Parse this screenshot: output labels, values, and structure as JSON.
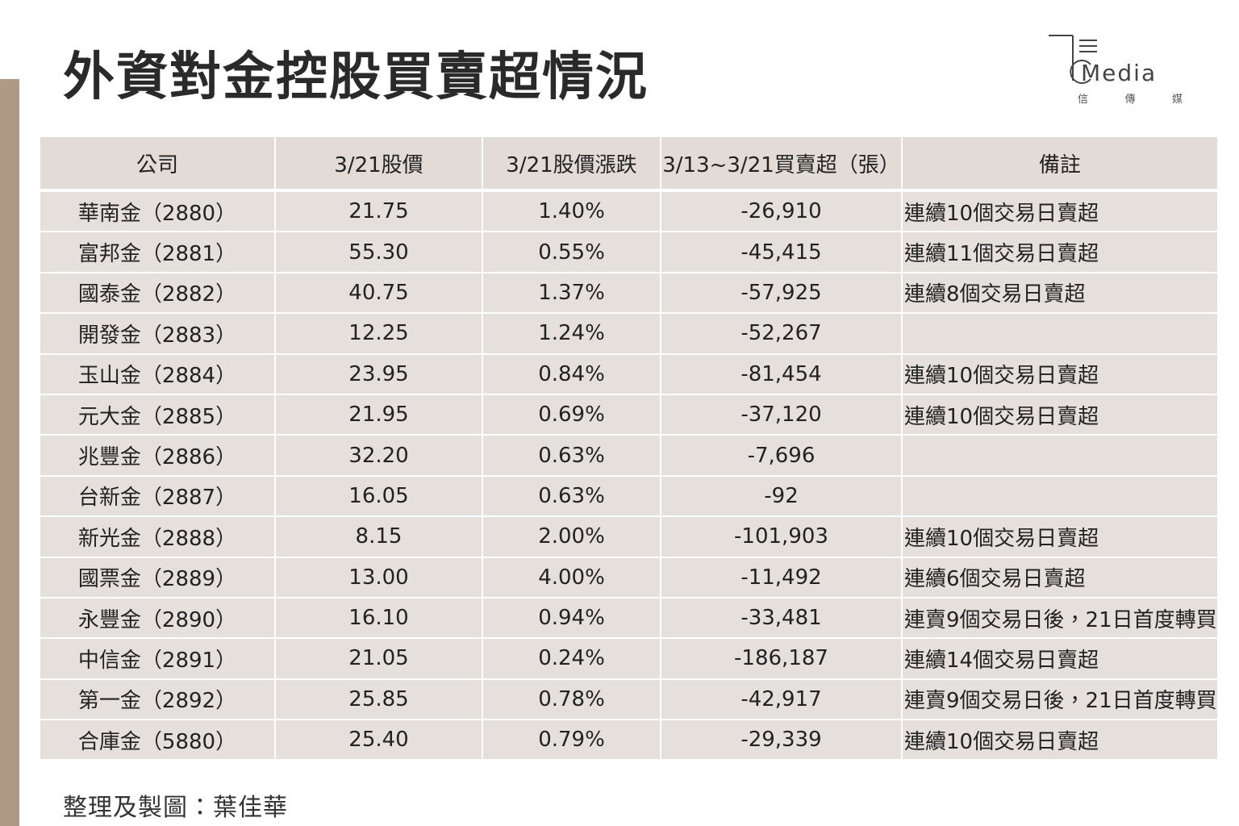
{
  "header": {
    "title": "外資對金控股買賣超情況"
  },
  "logo": {
    "name": "Media",
    "chars": [
      "信",
      "傳",
      "媒"
    ]
  },
  "table": {
    "headers": [
      "公司",
      "3/21股價",
      "3/21股價漲跌",
      "3/13~3/21買賣超（張）",
      "備註"
    ],
    "rows": [
      [
        "華南金（2880）",
        "21.75",
        "1.40%",
        "-26,910",
        "連續10個交易日賣超"
      ],
      [
        "富邦金（2881）",
        "55.30",
        "0.55%",
        "-45,415",
        "連續11個交易日賣超"
      ],
      [
        "國泰金（2882）",
        "40.75",
        "1.37%",
        "-57,925",
        "連續8個交易日賣超"
      ],
      [
        "開發金（2883）",
        "12.25",
        "1.24%",
        "-52,267",
        ""
      ],
      [
        "玉山金（2884）",
        "23.95",
        "0.84%",
        "-81,454",
        "連續10個交易日賣超"
      ],
      [
        "元大金（2885）",
        "21.95",
        "0.69%",
        "-37,120",
        "連續10個交易日賣超"
      ],
      [
        "兆豐金（2886）",
        "32.20",
        "0.63%",
        "-7,696",
        ""
      ],
      [
        "台新金（2887）",
        "16.05",
        "0.63%",
        "-92",
        ""
      ],
      [
        "新光金（2888）",
        "8.15",
        "2.00%",
        "-101,903",
        "連續10個交易日賣超"
      ],
      [
        "國票金（2889）",
        "13.00",
        "4.00%",
        "-11,492",
        "連續6個交易日賣超"
      ],
      [
        "永豐金（2890）",
        "16.10",
        "0.94%",
        "-33,481",
        "連賣9個交易日後，21日首度轉買"
      ],
      [
        "中信金（2891）",
        "21.05",
        "0.24%",
        "-186,187",
        "連續14個交易日賣超"
      ],
      [
        "第一金（2892）",
        "25.85",
        "0.78%",
        "-42,917",
        "連賣9個交易日後，21日首度轉買"
      ],
      [
        "合庫金（5880）",
        "25.40",
        "0.79%",
        "-29,339",
        "連續10個交易日賣超"
      ]
    ]
  },
  "footer": {
    "credit": "整理及製圖：葉佳華"
  }
}
